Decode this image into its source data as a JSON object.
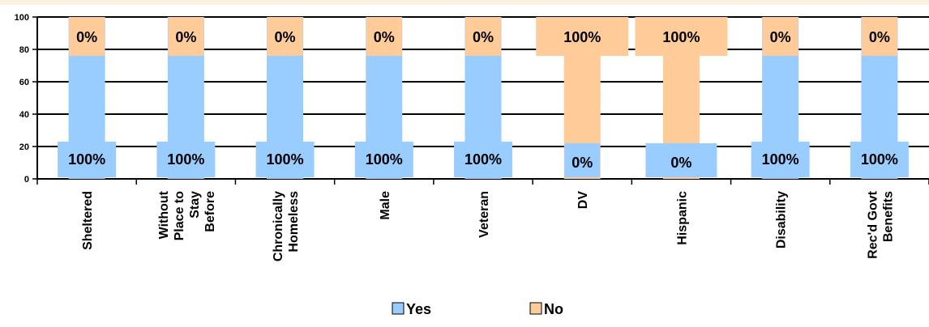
{
  "chart_data": {
    "type": "bar",
    "stacked": true,
    "title": "",
    "xlabel": "",
    "ylabel": "",
    "ylim": [
      0,
      100
    ],
    "yticks": [
      0,
      20,
      40,
      60,
      80,
      100
    ],
    "grid": true,
    "legend_position": "bottom",
    "categories": [
      [
        "Sheltered"
      ],
      [
        "Without",
        "Place to",
        "Stay",
        "Before"
      ],
      [
        "Chronically",
        "Homeless"
      ],
      [
        "Male"
      ],
      [
        "Veteran"
      ],
      [
        "DV"
      ],
      [
        "Hispanic"
      ],
      [
        "Disability"
      ],
      [
        "Rec'd Govt",
        "Benefits"
      ]
    ],
    "series": [
      {
        "name": "Yes",
        "color": "#99ccff",
        "values": [
          100,
          100,
          100,
          100,
          100,
          0,
          0,
          100,
          100
        ],
        "labels": [
          "100%",
          "100%",
          "100%",
          "100%",
          "100%",
          "0%",
          "0%",
          "100%",
          "100%"
        ]
      },
      {
        "name": "No",
        "color": "#ffcc99",
        "values": [
          0,
          0,
          0,
          0,
          0,
          100,
          100,
          0,
          0
        ],
        "labels": [
          "0%",
          "0%",
          "0%",
          "0%",
          "0%",
          "100%",
          "100%",
          "0%",
          "0%"
        ]
      }
    ]
  },
  "colors": {
    "top_band": "#fbf3e2",
    "axis": "#000000"
  }
}
